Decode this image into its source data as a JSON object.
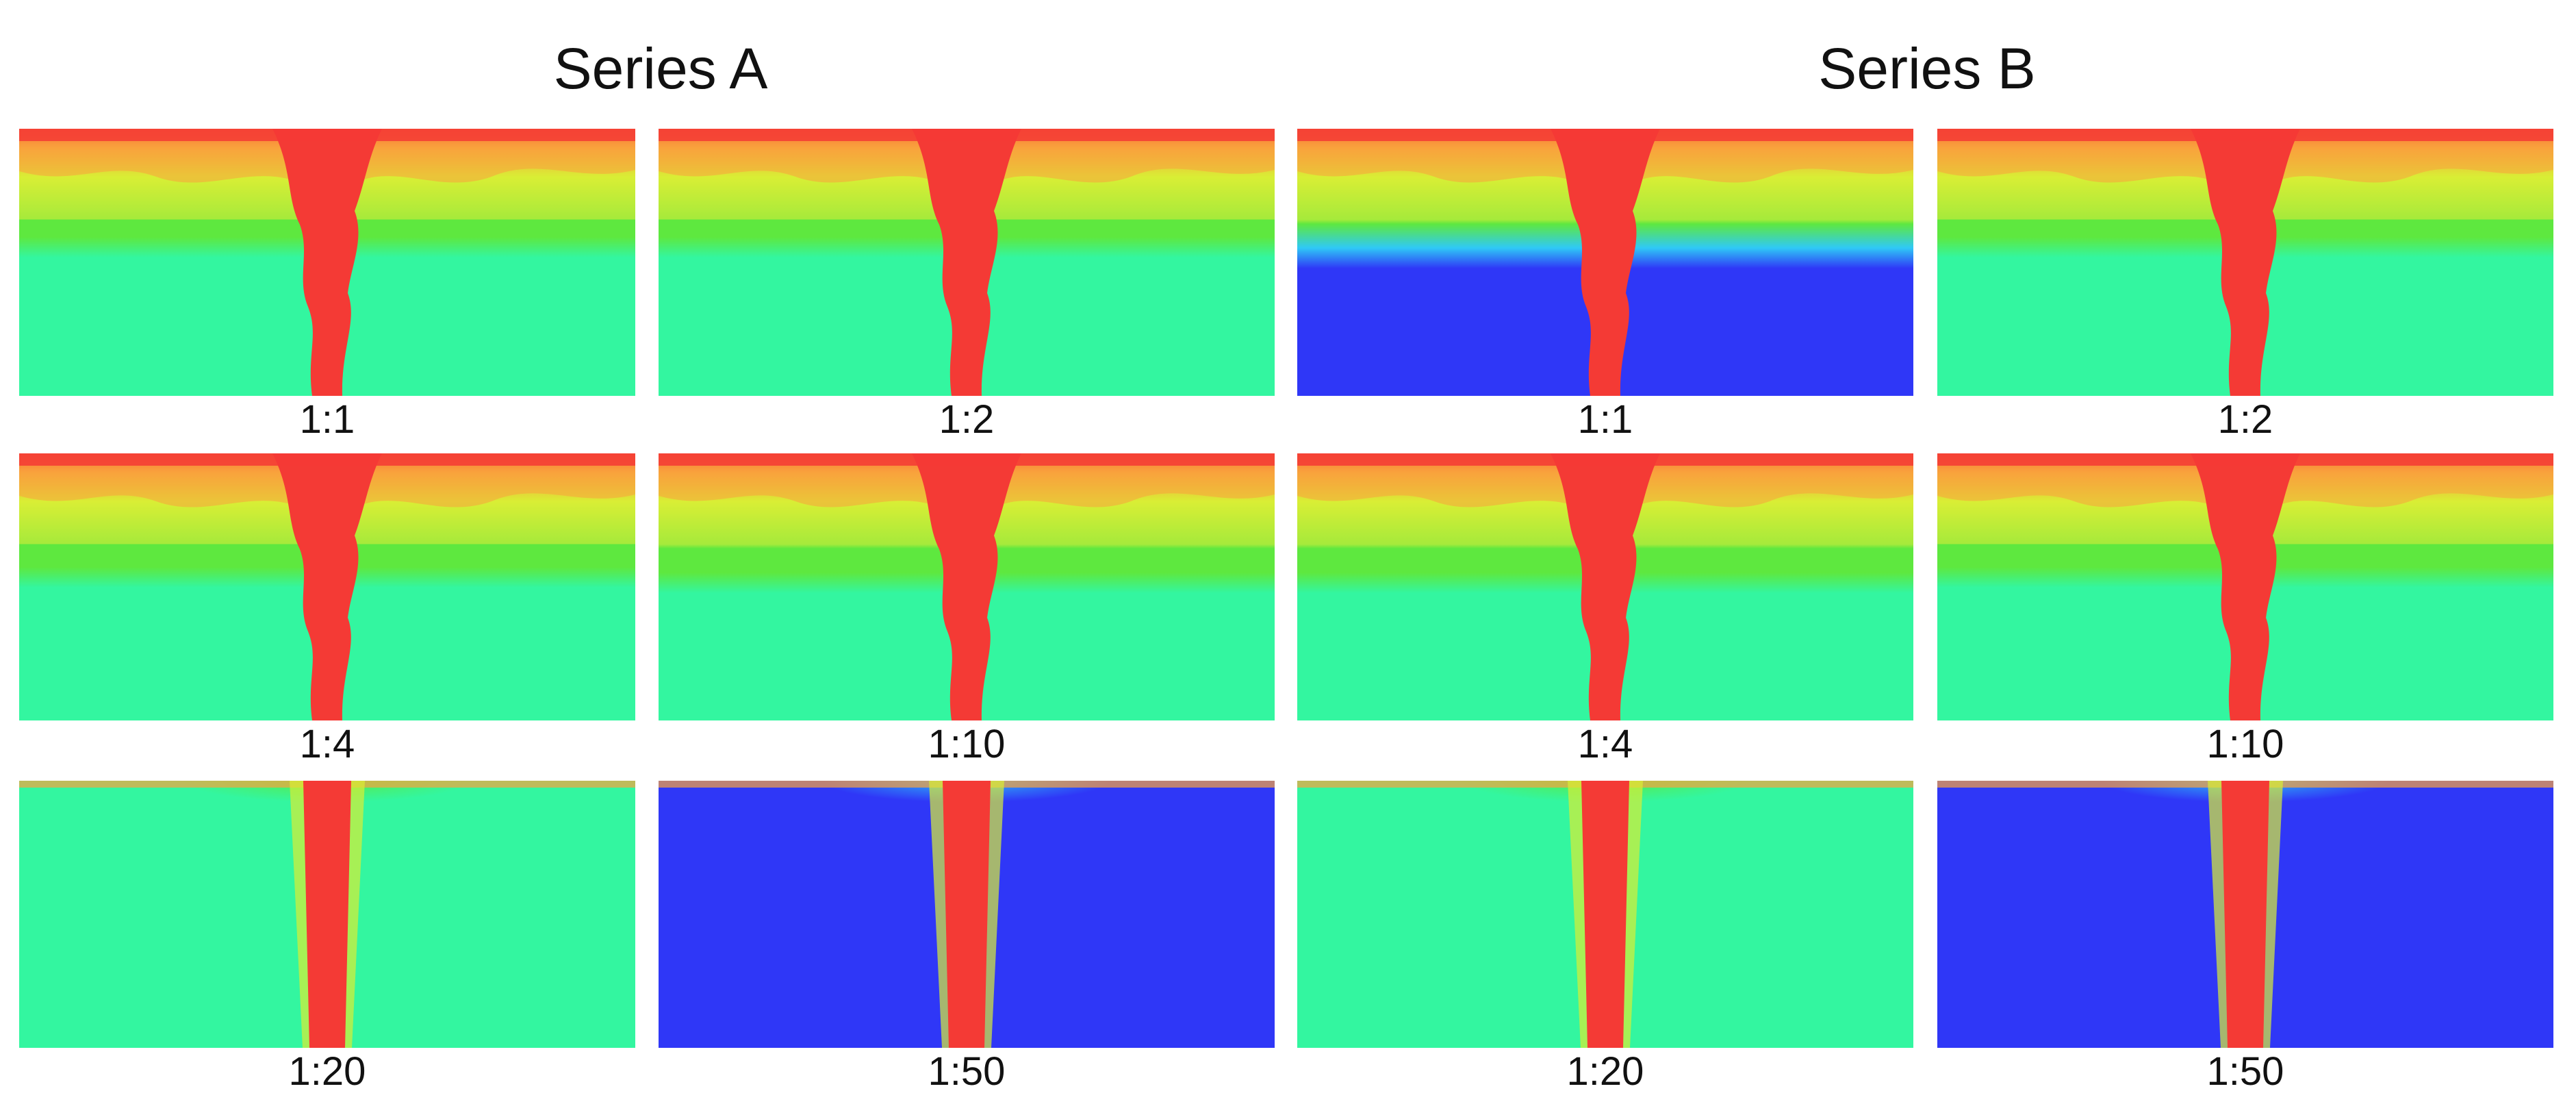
{
  "figure": {
    "series": [
      {
        "title": "Series A",
        "panels": [
          {
            "label": "1:1",
            "interface_level": 0.62,
            "mode": "turbulent",
            "lower": "green"
          },
          {
            "label": "1:2",
            "interface_level": 0.62,
            "mode": "turbulent",
            "lower": "green"
          },
          {
            "label": "1:4",
            "interface_level": 0.6,
            "mode": "turbulent",
            "lower": "green"
          },
          {
            "label": "1:10",
            "interface_level": 0.58,
            "mode": "turbulent",
            "lower": "green"
          },
          {
            "label": "1:20",
            "interface_level": 0.98,
            "mode": "laminar",
            "lower": "green"
          },
          {
            "label": "1:50",
            "interface_level": 0.98,
            "mode": "laminar",
            "lower": "blue"
          }
        ]
      },
      {
        "title": "Series B",
        "panels": [
          {
            "label": "1:1",
            "interface_level": 0.58,
            "mode": "turbulent",
            "lower": "blue"
          },
          {
            "label": "1:2",
            "interface_level": 0.62,
            "mode": "turbulent",
            "lower": "green"
          },
          {
            "label": "1:4",
            "interface_level": 0.58,
            "mode": "turbulent",
            "lower": "green"
          },
          {
            "label": "1:10",
            "interface_level": 0.6,
            "mode": "turbulent",
            "lower": "green"
          },
          {
            "label": "1:20",
            "interface_level": 0.98,
            "mode": "laminar",
            "lower": "green"
          },
          {
            "label": "1:50",
            "interface_level": 0.98,
            "mode": "laminar",
            "lower": "blue"
          }
        ]
      }
    ],
    "colors": {
      "plume": "#f43a35",
      "upper_orange": "#f9a23d",
      "yellow": "#d9ee35",
      "yellow_green": "#a6ea3b",
      "green": "#5ee83f",
      "teal_green": "#33f6a0",
      "cyan": "#2fc9f6",
      "blue": "#2f37f7"
    }
  }
}
